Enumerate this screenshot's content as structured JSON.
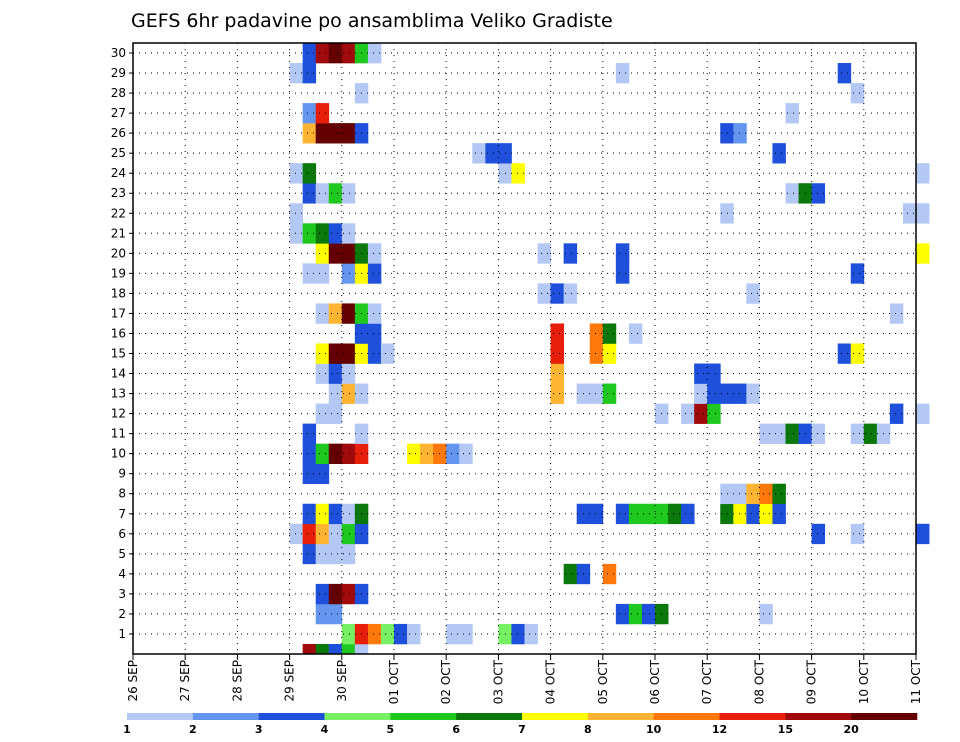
{
  "chart_data": {
    "type": "heatmap",
    "title": "GEFS 6hr padavine po ansamblima Veliko Gradiste",
    "xlabel": "",
    "ylabel": "",
    "x_tick_labels": [
      "26 SEP",
      "27 SEP",
      "28 SEP",
      "29 SEP",
      "30 SEP",
      "01 OCT",
      "02 OCT",
      "03 OCT",
      "04 OCT",
      "05 OCT",
      "06 OCT",
      "07 OCT",
      "08 OCT",
      "09 OCT",
      "10 OCT",
      "11 OCT"
    ],
    "x_range_days": [
      0,
      15
    ],
    "y_tick_labels": [
      "1",
      "2",
      "3",
      "4",
      "5",
      "6",
      "7",
      "8",
      "9",
      "10",
      "11",
      "12",
      "13",
      "14",
      "15",
      "16",
      "17",
      "18",
      "19",
      "20",
      "21",
      "22",
      "23",
      "24",
      "25",
      "26",
      "27",
      "28",
      "29",
      "30"
    ],
    "y_range": [
      0,
      30
    ],
    "grid": true,
    "step_hours": 6,
    "colorbar": {
      "labels": [
        "1",
        "2",
        "3",
        "4",
        "5",
        "6",
        "7",
        "8",
        "10",
        "12",
        "15",
        "20"
      ],
      "colors": [
        "#b4c8f5",
        "#6496f0",
        "#1e50dc",
        "#78f064",
        "#1ec81e",
        "#0a780a",
        "#ffff00",
        "#ffb432",
        "#ff780a",
        "#e61e0a",
        "#a00a0a",
        "#640000"
      ]
    },
    "cells_doc": "each row: [member, first step index (step = 6 h from 26 SEP 00Z), color class index per consecutive step]",
    "rows": [
      [
        0,
        13,
        [
          10,
          5,
          2,
          4,
          0
        ]
      ],
      [
        1,
        16,
        [
          3,
          9,
          8,
          3,
          2,
          0
        ]
      ],
      [
        1,
        24,
        [
          0,
          0
        ]
      ],
      [
        1,
        28,
        [
          3,
          2,
          0
        ]
      ],
      [
        2,
        14,
        [
          1,
          1
        ]
      ],
      [
        2,
        37,
        [
          2,
          4,
          2,
          5
        ]
      ],
      [
        2,
        48,
        [
          0
        ]
      ],
      [
        3,
        14,
        [
          2,
          11,
          10,
          2
        ]
      ],
      [
        4,
        33,
        [
          5,
          2
        ]
      ],
      [
        4,
        36,
        [
          8
        ]
      ],
      [
        5,
        13,
        [
          2,
          0,
          0,
          0
        ]
      ],
      [
        6,
        12,
        [
          0,
          9,
          7,
          0,
          4,
          2
        ]
      ],
      [
        6,
        52,
        [
          2
        ]
      ],
      [
        6,
        55,
        [
          0
        ]
      ],
      [
        6,
        60,
        [
          2
        ]
      ],
      [
        7,
        13,
        [
          2,
          6,
          2,
          0,
          5
        ]
      ],
      [
        7,
        34,
        [
          2,
          2
        ]
      ],
      [
        7,
        37,
        [
          2,
          4,
          4,
          4,
          5,
          2
        ]
      ],
      [
        7,
        45,
        [
          5,
          6,
          2,
          6,
          2
        ]
      ],
      [
        8,
        45,
        [
          0,
          0,
          7,
          8,
          5
        ]
      ],
      [
        9,
        13,
        [
          2,
          2
        ]
      ],
      [
        10,
        13,
        [
          2,
          4,
          11,
          10,
          9
        ]
      ],
      [
        10,
        21,
        [
          6,
          7,
          8,
          1,
          0
        ]
      ],
      [
        11,
        13,
        [
          2
        ]
      ],
      [
        11,
        17,
        [
          0
        ]
      ],
      [
        11,
        48,
        [
          0,
          0,
          5,
          2,
          0
        ]
      ],
      [
        11,
        55,
        [
          0,
          5,
          0
        ]
      ],
      [
        12,
        14,
        [
          0,
          0
        ]
      ],
      [
        12,
        40,
        [
          0
        ]
      ],
      [
        12,
        42,
        [
          0,
          10,
          4
        ]
      ],
      [
        12,
        58,
        [
          2
        ]
      ],
      [
        12,
        60,
        [
          0
        ]
      ],
      [
        13,
        15,
        [
          0,
          7,
          0
        ]
      ],
      [
        13,
        32,
        [
          7
        ]
      ],
      [
        13,
        34,
        [
          0,
          0,
          4
        ]
      ],
      [
        13,
        43,
        [
          0,
          2,
          2,
          2,
          0
        ]
      ],
      [
        14,
        14,
        [
          0,
          2,
          0
        ]
      ],
      [
        14,
        32,
        [
          7
        ]
      ],
      [
        14,
        43,
        [
          2,
          2
        ]
      ],
      [
        15,
        14,
        [
          6,
          11,
          11,
          6,
          2,
          0
        ]
      ],
      [
        15,
        32,
        [
          9
        ]
      ],
      [
        15,
        35,
        [
          8,
          6
        ]
      ],
      [
        15,
        54,
        [
          2,
          6
        ]
      ],
      [
        16,
        17,
        [
          2,
          2
        ]
      ],
      [
        16,
        32,
        [
          9
        ]
      ],
      [
        16,
        35,
        [
          8,
          5
        ]
      ],
      [
        16,
        38,
        [
          0
        ]
      ],
      [
        17,
        14,
        [
          0,
          7,
          11,
          4,
          0
        ]
      ],
      [
        17,
        58,
        [
          0
        ]
      ],
      [
        18,
        31,
        [
          0,
          2,
          0
        ]
      ],
      [
        18,
        47,
        [
          0
        ]
      ],
      [
        19,
        13,
        [
          0,
          0
        ]
      ],
      [
        19,
        16,
        [
          1,
          6,
          2
        ]
      ],
      [
        19,
        37,
        [
          2
        ]
      ],
      [
        19,
        55,
        [
          2
        ]
      ],
      [
        20,
        14,
        [
          6,
          11,
          11,
          5,
          0
        ]
      ],
      [
        20,
        31,
        [
          0
        ]
      ],
      [
        20,
        33,
        [
          2
        ]
      ],
      [
        20,
        37,
        [
          2
        ]
      ],
      [
        20,
        60,
        [
          6
        ]
      ],
      [
        21,
        12,
        [
          0,
          4,
          5,
          2
        ]
      ],
      [
        21,
        16,
        [
          0
        ]
      ],
      [
        22,
        12,
        [
          0
        ]
      ],
      [
        22,
        45,
        [
          0
        ]
      ],
      [
        22,
        59,
        [
          0,
          0
        ]
      ],
      [
        23,
        13,
        [
          2,
          0,
          4
        ]
      ],
      [
        23,
        16,
        [
          0
        ]
      ],
      [
        23,
        50,
        [
          0,
          5,
          2
        ]
      ],
      [
        24,
        12,
        [
          0,
          5
        ]
      ],
      [
        24,
        28,
        [
          0,
          6
        ]
      ],
      [
        24,
        60,
        [
          0
        ]
      ],
      [
        25,
        26,
        [
          0,
          2,
          2
        ]
      ],
      [
        25,
        49,
        [
          2
        ]
      ],
      [
        26,
        13,
        [
          7,
          11,
          11,
          11,
          2
        ]
      ],
      [
        26,
        45,
        [
          2,
          1
        ]
      ],
      [
        27,
        13,
        [
          1,
          9
        ]
      ],
      [
        27,
        50,
        [
          0
        ]
      ],
      [
        28,
        17,
        [
          0
        ]
      ],
      [
        28,
        55,
        [
          0
        ]
      ],
      [
        29,
        12,
        [
          0,
          2
        ]
      ],
      [
        29,
        37,
        [
          0
        ]
      ],
      [
        29,
        54,
        [
          2
        ]
      ],
      [
        30,
        13,
        [
          2,
          10,
          11,
          10,
          4,
          0
        ]
      ]
    ]
  }
}
